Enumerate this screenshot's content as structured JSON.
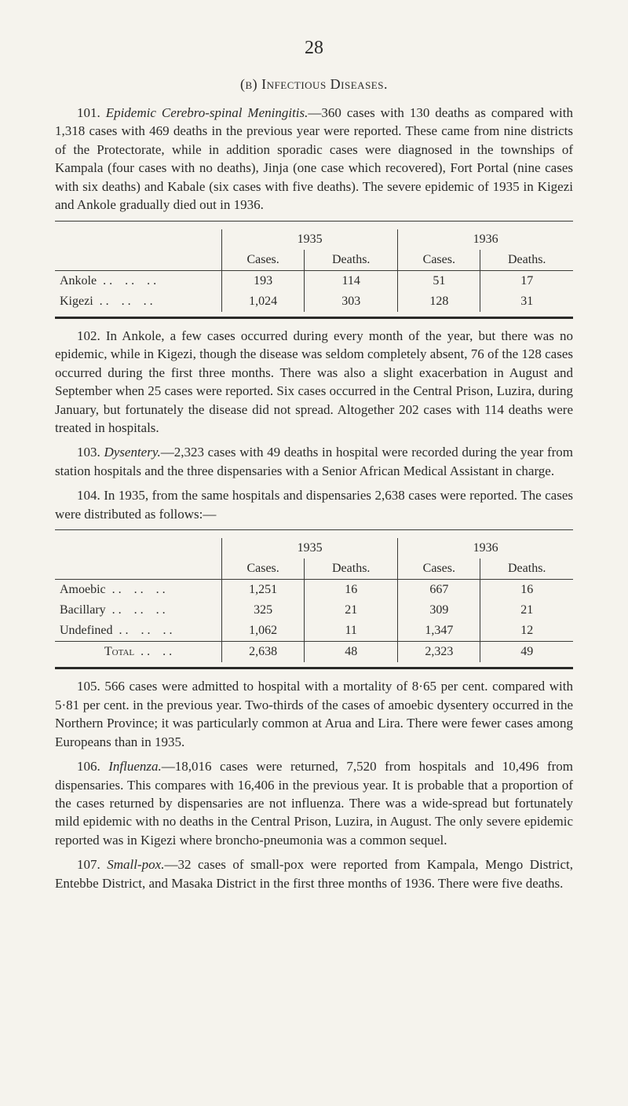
{
  "page_number": "28",
  "section_b": "(b)  Infectious Diseases.",
  "para101_num": "101.",
  "para101_title": "Epidemic Cerebro-spinal Meningitis.",
  "para101_rest": "—360 cases with 130 deaths as compared with 1,318 cases with 469 deaths in the previous year were reported. These came from nine districts of the Protectorate, while in addition sporadic cases were diagnosed in the townships of Kampala (four cases with no deaths), Jinja (one case which recovered), Fort Portal (nine cases with six deaths) and Kabale (six cases with five deaths). The severe epidemic of 1935 in Kigezi and Ankole gradually died out in 1936.",
  "table1": {
    "year1": "1935",
    "year2": "1936",
    "col_cases": "Cases.",
    "col_deaths": "Deaths.",
    "rows": [
      {
        "label": "Ankole",
        "c1": "193",
        "d1": "114",
        "c2": "51",
        "d2": "17"
      },
      {
        "label": "Kigezi",
        "c1": "1,024",
        "d1": "303",
        "c2": "128",
        "d2": "31"
      }
    ]
  },
  "para102_num": "102.",
  "para102": "In Ankole, a few cases occurred during every month of the year, but there was no epidemic, while in Kigezi, though the disease was seldom completely absent, 76 of the 128 cases occurred during the first three months. There was also a slight exacerbation in August and September when 25 cases were reported. Six cases occurred in the Central Prison, Luzira, during January, but fortunately the disease did not spread. Altogether 202 cases with 114 deaths were treated in hospitals.",
  "para103_num": "103.",
  "para103_title": "Dysentery.",
  "para103_rest": "—2,323 cases with 49 deaths in hospital were recorded during the year from station hospitals and the three dispensaries with a Senior African Medical Assistant in charge.",
  "para104_num": "104.",
  "para104": "In 1935, from the same hospitals and dispensaries 2,638 cases were reported. The cases were distributed as follows:—",
  "table2": {
    "year1": "1935",
    "year2": "1936",
    "col_cases": "Cases.",
    "col_deaths": "Deaths.",
    "rows": [
      {
        "label": "Amoebic",
        "c1": "1,251",
        "d1": "16",
        "c2": "667",
        "d2": "16"
      },
      {
        "label": "Bacillary",
        "c1": "325",
        "d1": "21",
        "c2": "309",
        "d2": "21"
      },
      {
        "label": "Undefined",
        "c1": "1,062",
        "d1": "11",
        "c2": "1,347",
        "d2": "12"
      }
    ],
    "total_label": "Total",
    "total": {
      "c1": "2,638",
      "d1": "48",
      "c2": "2,323",
      "d2": "49"
    }
  },
  "para105_num": "105.",
  "para105": "566 cases were admitted to hospital with a mortality of 8·65 per cent. compared with 5·81 per cent. in the previous year. Two-thirds of the cases of amoebic dysentery occurred in the Northern Province; it was particularly common at Arua and Lira. There were fewer cases among Europeans than in 1935.",
  "para106_num": "106.",
  "para106_title": "Influenza.",
  "para106_rest": "—18,016 cases were returned, 7,520 from hospitals and 10,496 from dispensaries. This compares with 16,406 in the previous year. It is probable that a proportion of the cases returned by dis­pensaries are not influenza. There was a wide-spread but fortunately mild epidemic with no deaths in the Central Prison, Luzira, in August. The only severe epidemic reported was in Kigezi where broncho-pneumonia was a common sequel.",
  "para107_num": "107.",
  "para107_title": "Small-pox.",
  "para107_rest": "—32 cases of small-pox were reported from Kampala, Mengo District, Entebbe District, and Masaka District in the first three months of 1936. There were five deaths."
}
